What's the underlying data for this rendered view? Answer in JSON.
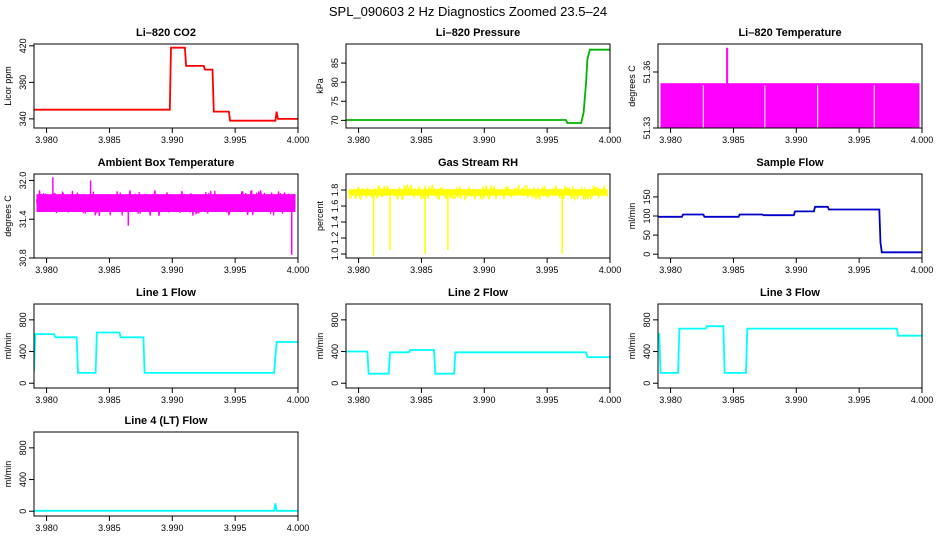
{
  "figure": {
    "title": "SPL_090603  2 Hz Diagnostics Zoomed 23.5–24"
  },
  "chart_data": [
    {
      "type": "line",
      "title": "Li–820 CO2",
      "ylabel": "Licor ppm",
      "color": "#ff0000",
      "xlim": [
        3.979,
        4.0
      ],
      "ylim": [
        330,
        422
      ],
      "xticks": [
        3.98,
        3.985,
        3.99,
        3.995,
        4.0
      ],
      "xticklabels": [
        "3.980",
        "3.985",
        "3.990",
        "3.995",
        "4.000"
      ],
      "yticks": [
        340,
        380,
        420
      ],
      "yticklabels": [
        "340",
        "380",
        "420"
      ],
      "series": [
        {
          "x": [
            3.979,
            3.9898,
            3.9899,
            3.991,
            3.9911,
            3.9925,
            3.9926,
            3.9932,
            3.9933,
            3.9945,
            3.9946,
            3.9982,
            3.9983,
            3.9984,
            4.0
          ],
          "y": [
            350,
            350,
            418,
            418,
            398,
            398,
            394,
            394,
            348,
            348,
            338,
            338,
            348,
            340,
            340
          ]
        }
      ]
    },
    {
      "type": "line",
      "title": "Li–820 Pressure",
      "ylabel": "kPa",
      "color": "#00b400",
      "xlim": [
        3.979,
        4.0
      ],
      "ylim": [
        68,
        90
      ],
      "xticks": [
        3.98,
        3.985,
        3.99,
        3.995,
        4.0
      ],
      "xticklabels": [
        "3.980",
        "3.985",
        "3.990",
        "3.995",
        "4.000"
      ],
      "yticks": [
        70,
        75,
        80,
        85
      ],
      "yticklabels": [
        "70",
        "75",
        "80",
        "85"
      ],
      "series": [
        {
          "x": [
            3.979,
            3.9965,
            3.9966,
            3.9977,
            3.9979,
            3.9981,
            3.9982,
            3.9984,
            3.9992,
            4.0
          ],
          "y": [
            70.1,
            70.1,
            69.3,
            69.3,
            72,
            80,
            86,
            88.5,
            88.5,
            88.5
          ]
        }
      ]
    },
    {
      "type": "area",
      "title": "Li–820 Temperature",
      "ylabel": "degrees C",
      "color": "#ff00ff",
      "xlim": [
        3.979,
        4.0
      ],
      "ylim": [
        51.33,
        51.375
      ],
      "xticks": [
        3.98,
        3.985,
        3.99,
        3.995,
        4.0
      ],
      "xticklabels": [
        "3.980",
        "3.985",
        "3.990",
        "3.995",
        "4.000"
      ],
      "yticks": [
        51.33,
        51.36
      ],
      "yticklabels": [
        "51.33",
        "51.36"
      ],
      "band": [
        51.33,
        51.354
      ],
      "spike": {
        "x": 3.9845,
        "y": 51.373
      }
    },
    {
      "type": "line",
      "title": "Ambient Box Temperature",
      "ylabel": "degrees C",
      "color": "#ff00ff",
      "xlim": [
        3.979,
        4.0
      ],
      "ylim": [
        30.8,
        32.1
      ],
      "xticks": [
        3.98,
        3.985,
        3.99,
        3.995,
        4.0
      ],
      "xticklabels": [
        "3.980",
        "3.985",
        "3.990",
        "3.995",
        "4.000"
      ],
      "yticks": [
        30.8,
        31.4,
        32.0
      ],
      "yticklabels": [
        "30.8",
        "31.4",
        "32.0"
      ],
      "band": [
        31.45,
        31.85
      ],
      "spikes": [
        [
          3.9805,
          32.05
        ],
        [
          3.9835,
          32.0
        ],
        [
          3.9865,
          31.3
        ],
        [
          3.9995,
          30.85
        ]
      ]
    },
    {
      "type": "line",
      "title": "Gas Stream RH",
      "ylabel": "percent",
      "color": "#ffff00",
      "xlim": [
        3.979,
        4.0
      ],
      "ylim": [
        0.95,
        2.0
      ],
      "xticks": [
        3.98,
        3.985,
        3.99,
        3.995,
        4.0
      ],
      "xticklabels": [
        "3.980",
        "3.985",
        "3.990",
        "3.995",
        "4.000"
      ],
      "yticks": [
        1.0,
        1.2,
        1.4,
        1.6,
        1.8
      ],
      "yticklabels": [
        "1.0",
        "1.2",
        "1.4",
        "1.6",
        "1.8"
      ],
      "band": [
        1.68,
        1.86
      ],
      "spikes": [
        [
          3.9812,
          0.98
        ],
        [
          3.9825,
          1.05
        ],
        [
          3.9853,
          1.0
        ],
        [
          3.9871,
          1.05
        ],
        [
          3.9962,
          1.0
        ]
      ]
    },
    {
      "type": "line",
      "title": "Sample Flow",
      "ylabel": "ml/min",
      "color": "#0000cc",
      "xlim": [
        3.979,
        4.0
      ],
      "ylim": [
        -10,
        210
      ],
      "xticks": [
        3.98,
        3.985,
        3.99,
        3.995,
        4.0
      ],
      "xticklabels": [
        "3.980",
        "3.985",
        "3.990",
        "3.995",
        "4.000"
      ],
      "yticks": [
        0,
        50,
        100,
        150
      ],
      "yticklabels": [
        "0",
        "50",
        "100",
        "150"
      ],
      "series": [
        {
          "x": [
            3.979,
            3.9809,
            3.981,
            3.9826,
            3.9827,
            3.9854,
            3.9855,
            3.9873,
            3.9874,
            3.9898,
            3.9899,
            3.9914,
            3.9915,
            3.9925,
            3.9926,
            3.9966,
            3.9967,
            3.9968,
            4.0
          ],
          "y": [
            98,
            98,
            104,
            104,
            98,
            98,
            104,
            104,
            102,
            102,
            112,
            112,
            124,
            124,
            117,
            117,
            30,
            5,
            5
          ]
        }
      ]
    },
    {
      "type": "line",
      "title": "Line 1 Flow",
      "ylabel": "ml/min",
      "color": "#00ffff",
      "xlim": [
        3.979,
        4.0
      ],
      "ylim": [
        -60,
        1000
      ],
      "xticks": [
        3.98,
        3.985,
        3.99,
        3.995,
        4.0
      ],
      "xticklabels": [
        "3.980",
        "3.985",
        "3.990",
        "3.995",
        "4.000"
      ],
      "yticks": [
        0,
        400,
        800
      ],
      "yticklabels": [
        "0",
        "400",
        "800"
      ],
      "series": [
        {
          "x": [
            3.979,
            3.979,
            3.9791,
            3.9806,
            3.9807,
            3.9824,
            3.9825,
            3.9839,
            3.984,
            3.9858,
            3.9859,
            3.9877,
            3.9878,
            3.9981,
            3.9983,
            4.0
          ],
          "y": [
            150,
            150,
            620,
            620,
            580,
            580,
            130,
            130,
            640,
            640,
            580,
            580,
            130,
            130,
            520,
            520
          ]
        }
      ]
    },
    {
      "type": "line",
      "title": "Line 2 Flow",
      "ylabel": "ml/min",
      "color": "#00ffff",
      "xlim": [
        3.979,
        4.0
      ],
      "ylim": [
        -60,
        1000
      ],
      "xticks": [
        3.98,
        3.985,
        3.99,
        3.995,
        4.0
      ],
      "xticklabels": [
        "3.980",
        "3.985",
        "3.990",
        "3.995",
        "4.000"
      ],
      "yticks": [
        0,
        400,
        800
      ],
      "yticklabels": [
        "0",
        "400",
        "800"
      ],
      "series": [
        {
          "x": [
            3.979,
            3.9807,
            3.9808,
            3.9824,
            3.9825,
            3.984,
            3.9841,
            3.986,
            3.9861,
            3.9876,
            3.9877,
            3.9981,
            3.9982,
            4.0
          ],
          "y": [
            400,
            400,
            120,
            120,
            390,
            390,
            420,
            420,
            120,
            120,
            390,
            390,
            330,
            330
          ]
        }
      ]
    },
    {
      "type": "line",
      "title": "Line 3 Flow",
      "ylabel": "ml/min",
      "color": "#00ffff",
      "xlim": [
        3.979,
        4.0
      ],
      "ylim": [
        -60,
        1000
      ],
      "xticks": [
        3.98,
        3.985,
        3.99,
        3.995,
        4.0
      ],
      "xticklabels": [
        "3.980",
        "3.985",
        "3.990",
        "3.995",
        "4.000"
      ],
      "yticks": [
        0,
        400,
        800
      ],
      "yticklabels": [
        "0",
        "400",
        "800"
      ],
      "series": [
        {
          "x": [
            3.979,
            3.9791,
            3.9792,
            3.9806,
            3.9807,
            3.9828,
            3.9829,
            3.9842,
            3.9843,
            3.986,
            3.9861,
            3.998,
            3.9981,
            4.0
          ],
          "y": [
            620,
            620,
            130,
            130,
            690,
            690,
            720,
            720,
            130,
            130,
            690,
            690,
            600,
            600
          ]
        }
      ]
    },
    {
      "type": "line",
      "title": "Line 4 (LT) Flow",
      "ylabel": "ml/min",
      "color": "#00ffff",
      "xlim": [
        3.979,
        4.0
      ],
      "ylim": [
        -60,
        1000
      ],
      "xticks": [
        3.98,
        3.985,
        3.99,
        3.995,
        4.0
      ],
      "xticklabels": [
        "3.980",
        "3.985",
        "3.990",
        "3.995",
        "4.000"
      ],
      "yticks": [
        0,
        400,
        800
      ],
      "yticklabels": [
        "0",
        "400",
        "800"
      ],
      "series": [
        {
          "x": [
            3.979,
            3.9981,
            3.9982,
            3.9983,
            4.0
          ],
          "y": [
            5,
            5,
            100,
            5,
            5
          ]
        }
      ]
    }
  ]
}
